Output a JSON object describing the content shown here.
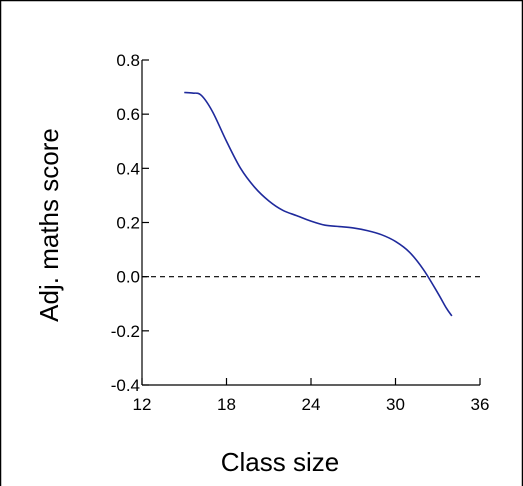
{
  "chart_data": {
    "type": "line",
    "title": "",
    "xlabel": "Class size",
    "ylabel": "Adj. maths score",
    "xlim": [
      12,
      36
    ],
    "ylim": [
      -0.4,
      0.8
    ],
    "x_ticks": [
      12,
      18,
      24,
      30,
      36
    ],
    "y_ticks": [
      0.8,
      0.6,
      0.4,
      0.2,
      0.0,
      -0.2,
      -0.4
    ],
    "x_tick_labels": [
      "12",
      "18",
      "24",
      "30",
      "36"
    ],
    "y_tick_labels": [
      "0.8",
      "0.6",
      "0.4",
      "0.2",
      "0.0",
      "-0.2",
      "-0.4"
    ],
    "reference_line": {
      "y": 0.0,
      "style": "dashed",
      "color": "#000000"
    },
    "grid": false,
    "legend": "none",
    "series": [
      {
        "color": "#1f2a9c",
        "points": [
          [
            15.0,
            0.68
          ],
          [
            15.6,
            0.678
          ],
          [
            16.2,
            0.67
          ],
          [
            17.0,
            0.61
          ],
          [
            18.0,
            0.5
          ],
          [
            19.0,
            0.4
          ],
          [
            20.0,
            0.33
          ],
          [
            21.0,
            0.28
          ],
          [
            22.0,
            0.245
          ],
          [
            23.0,
            0.225
          ],
          [
            24.0,
            0.205
          ],
          [
            25.0,
            0.19
          ],
          [
            26.0,
            0.185
          ],
          [
            27.0,
            0.18
          ],
          [
            28.0,
            0.17
          ],
          [
            29.0,
            0.155
          ],
          [
            30.0,
            0.13
          ],
          [
            31.0,
            0.09
          ],
          [
            32.0,
            0.025
          ],
          [
            33.0,
            -0.06
          ],
          [
            33.6,
            -0.115
          ],
          [
            34.0,
            -0.145
          ]
        ]
      }
    ]
  }
}
